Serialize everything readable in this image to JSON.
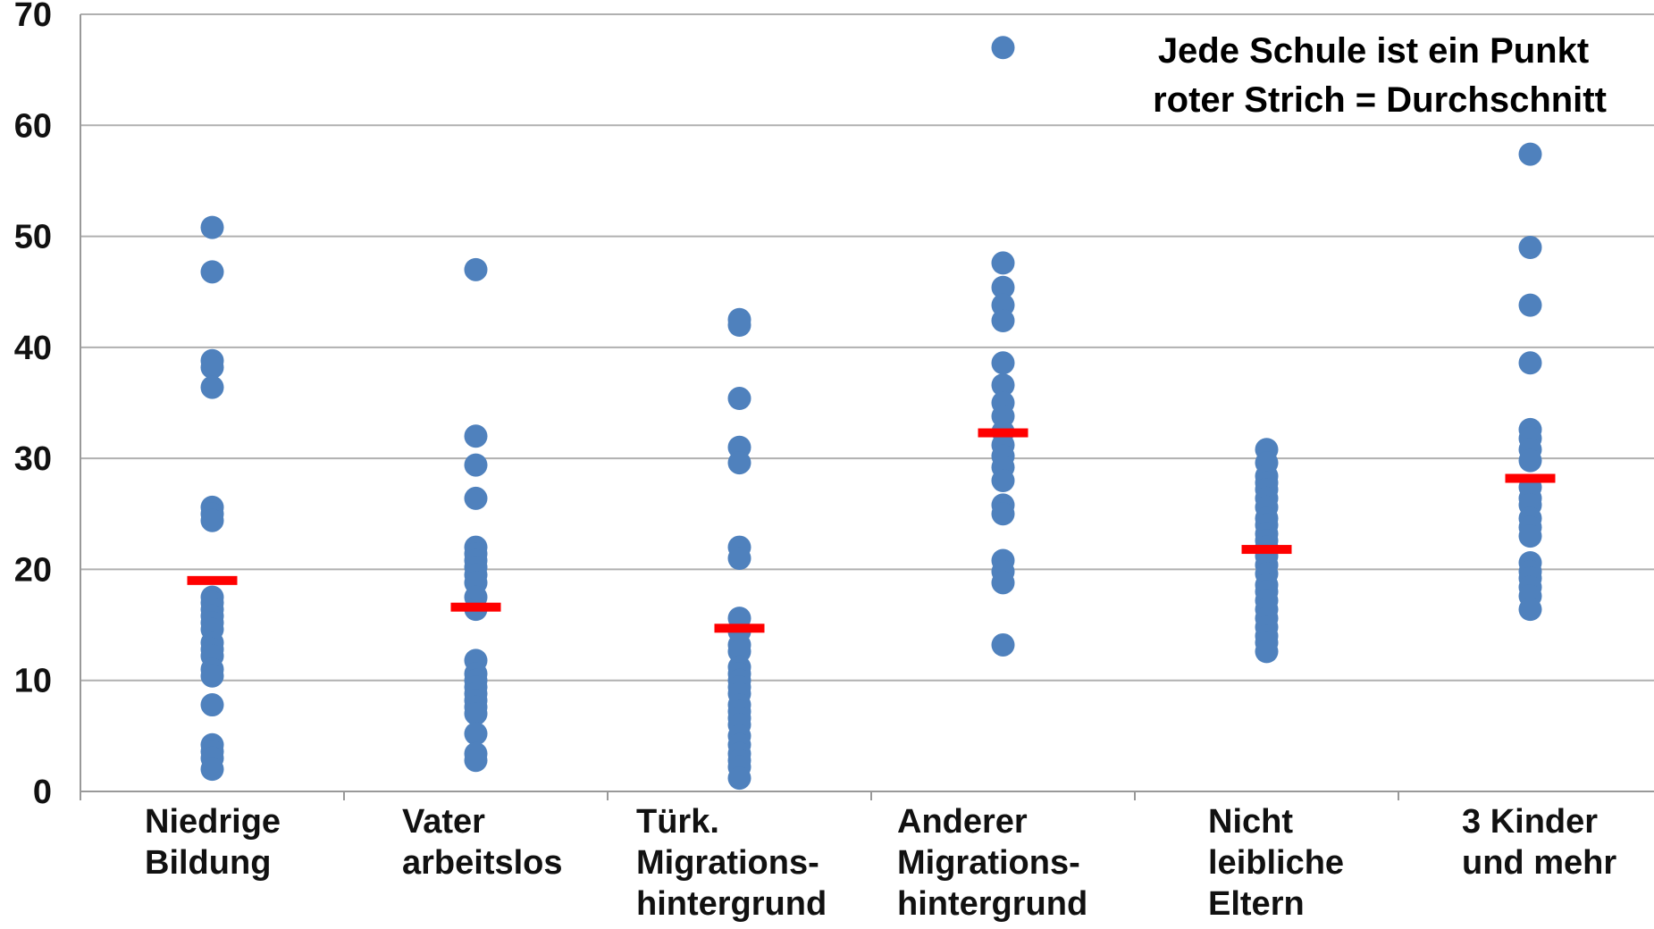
{
  "chart_data": {
    "type": "scatter",
    "title": "",
    "xlabel": "",
    "ylabel": "",
    "ylim": [
      0,
      70
    ],
    "yticks": [
      0,
      10,
      20,
      30,
      40,
      50,
      60,
      70
    ],
    "grid": true,
    "annotation_lines": [
      "Jede Schule ist ein Punkt",
      "roter Strich = Durchschnitt"
    ],
    "categories": [
      [
        "Niedrige",
        "Bildung"
      ],
      [
        "Vater",
        "arbeitslos"
      ],
      [
        "Türk.",
        "Migrations-",
        "hintergrund"
      ],
      [
        "Anderer",
        "Migrations-",
        "hintergrund"
      ],
      [
        "Nicht",
        "leibliche",
        "Eltern"
      ],
      [
        "3 Kinder",
        "und mehr"
      ]
    ],
    "point_color": "#4f81bd",
    "mean_color": "#ff0000",
    "groups": [
      {
        "values": [
          50.8,
          46.8,
          38.8,
          38.2,
          36.4,
          25.6,
          25.0,
          24.4,
          17.5,
          17.0,
          16.4,
          15.8,
          15.2,
          14.6,
          13.4,
          12.8,
          12.2,
          11.0,
          10.4,
          7.8,
          4.2,
          3.6,
          3.0,
          2.0
        ],
        "mean": 19.0
      },
      {
        "values": [
          47.0,
          32.0,
          29.4,
          26.4,
          22.0,
          21.4,
          20.8,
          20.2,
          19.5,
          18.8,
          17.5,
          16.4,
          11.8,
          10.6,
          10.0,
          9.4,
          8.8,
          8.2,
          7.6,
          7.0,
          5.2,
          3.4,
          2.8
        ],
        "mean": 16.6
      },
      {
        "values": [
          42.5,
          42.0,
          35.4,
          31.0,
          29.6,
          22.0,
          21.0,
          15.6,
          14.4,
          13.2,
          12.6,
          11.2,
          10.6,
          10.0,
          9.4,
          8.8,
          7.8,
          7.2,
          6.6,
          6.0,
          5.0,
          4.2,
          3.4,
          2.8,
          2.2,
          1.2
        ],
        "mean": 14.7
      },
      {
        "values": [
          67.0,
          47.6,
          45.4,
          43.8,
          42.4,
          38.6,
          36.6,
          35.0,
          33.8,
          32.4,
          31.2,
          30.2,
          29.2,
          28.0,
          25.8,
          25.0,
          20.8,
          19.8,
          18.8,
          13.2
        ],
        "mean": 32.3
      },
      {
        "values": [
          30.8,
          29.6,
          28.4,
          27.8,
          27.2,
          26.4,
          25.6,
          24.6,
          24.0,
          23.2,
          22.6,
          22.0,
          21.2,
          20.4,
          19.6,
          18.6,
          18.0,
          17.2,
          16.4,
          15.6,
          14.8,
          14.0,
          13.4,
          12.6
        ],
        "mean": 21.8
      },
      {
        "values": [
          57.4,
          49.0,
          43.8,
          38.6,
          32.6,
          31.8,
          30.8,
          29.8,
          27.4,
          26.4,
          25.8,
          24.6,
          23.8,
          23.0,
          20.6,
          19.8,
          19.2,
          18.4,
          17.6,
          16.4
        ],
        "mean": 28.2
      }
    ]
  }
}
